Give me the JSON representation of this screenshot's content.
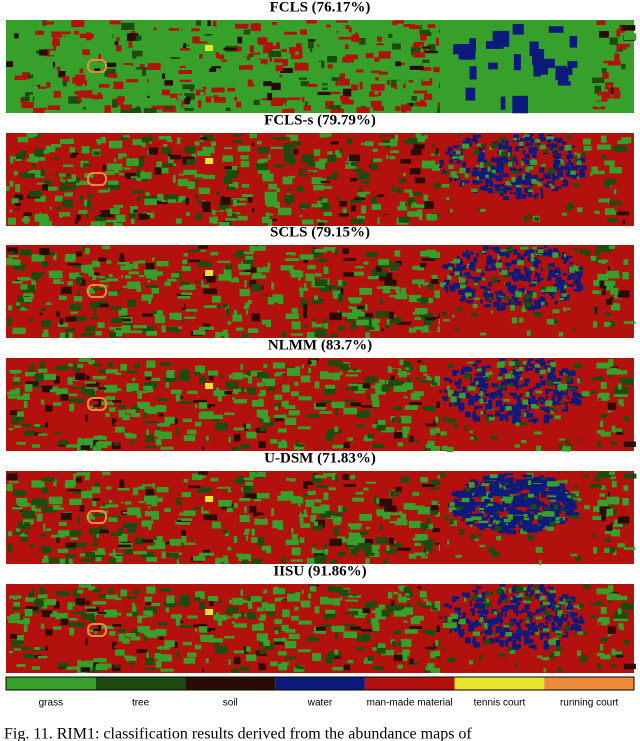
{
  "panels": [
    {
      "title": "FCLS (76.17%)"
    },
    {
      "title": "FCLS-s (79.79%)"
    },
    {
      "title": "SCLS (79.15%)"
    },
    {
      "title": "NLMM (83.7%)"
    },
    {
      "title": "U-DSM (71.83%)"
    },
    {
      "title": "IISU (91.86%)"
    }
  ],
  "legend": [
    {
      "label": "grass",
      "color": "#37a02a"
    },
    {
      "label": "tree",
      "color": "#1d4a0e"
    },
    {
      "label": "soil",
      "color": "#2a0c04"
    },
    {
      "label": "water",
      "color": "#0c1a7c"
    },
    {
      "label": "man-made material",
      "color": "#b3110e"
    },
    {
      "label": "tennis court",
      "color": "#e6e62c"
    },
    {
      "label": "running court",
      "color": "#ef8a3a"
    }
  ],
  "caption": "Fig. 11.   RIM1: classification results derived from the abundance maps of"
}
